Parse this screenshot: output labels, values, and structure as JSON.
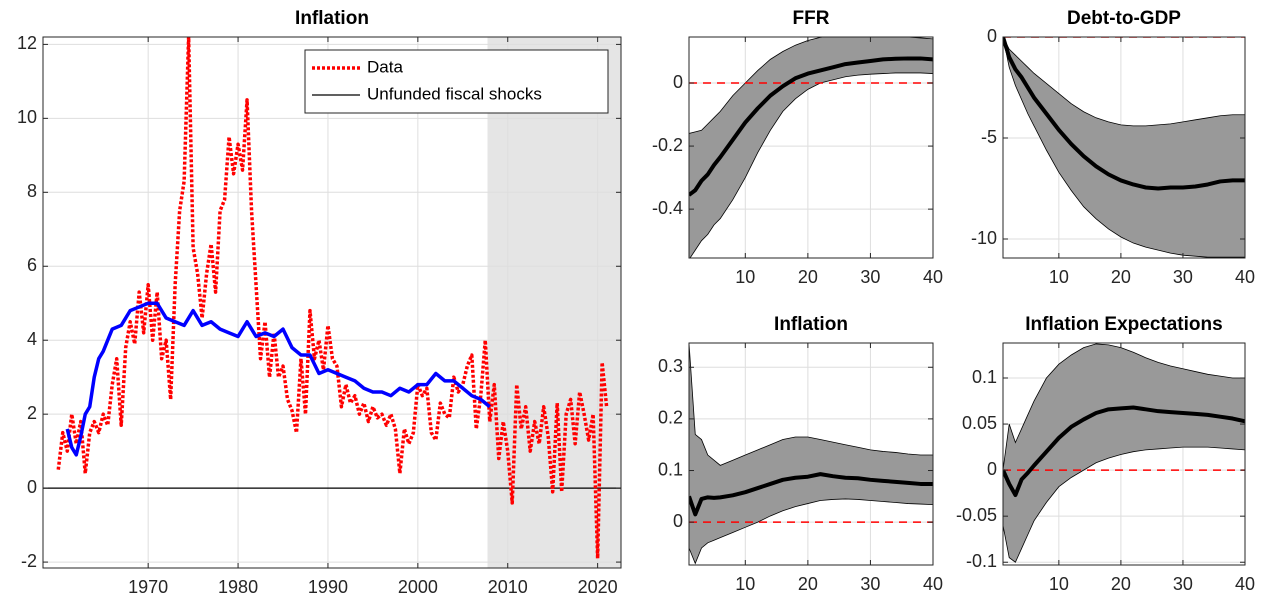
{
  "chart_data": [
    {
      "type": "line",
      "title": "Inflation",
      "xlim": [
        1958.3,
        2022.6
      ],
      "ylim": [
        -2.16,
        12.2
      ],
      "xticks": [
        1970,
        1980,
        1990,
        2000,
        2010,
        2020
      ],
      "yticks": [
        -2,
        0,
        2,
        4,
        6,
        8,
        10,
        12
      ],
      "grid": true,
      "legend": "upper right",
      "shade_x": [
        2007.75,
        2022.6
      ],
      "hline": 0,
      "hline_color": "#000000",
      "hline_style": "solid",
      "series": [
        {
          "name": "Data",
          "color": "#ff0000",
          "style": "dotted",
          "x": [
            1960,
            1960.5,
            1961,
            1961.5,
            1962,
            1962.5,
            1963,
            1963.5,
            1964,
            1964.5,
            1965,
            1965.5,
            1966,
            1966.5,
            1967,
            1967.5,
            1968,
            1968.5,
            1969,
            1969.5,
            1970,
            1970.5,
            1971,
            1971.5,
            1972,
            1972.5,
            1973,
            1973.5,
            1974,
            1974.5,
            1975,
            1975.5,
            1976,
            1976.5,
            1977,
            1977.5,
            1978,
            1978.5,
            1979,
            1979.5,
            1980,
            1980.5,
            1981,
            1981.5,
            1982,
            1982.5,
            1983,
            1983.5,
            1984,
            1984.5,
            1985,
            1985.5,
            1986,
            1986.5,
            1987,
            1987.5,
            1988,
            1988.5,
            1989,
            1989.5,
            1990,
            1990.5,
            1991,
            1991.5,
            1992,
            1992.5,
            1993,
            1993.5,
            1994,
            1994.5,
            1995,
            1995.5,
            1996,
            1996.5,
            1997,
            1997.5,
            1998,
            1998.5,
            1999,
            1999.5,
            2000,
            2000.5,
            2001,
            2001.5,
            2002,
            2002.5,
            2003,
            2003.5,
            2004,
            2004.5,
            2005,
            2005.5,
            2006,
            2006.5,
            2007,
            2007.5,
            2008,
            2008.5,
            2009,
            2009.5,
            2010,
            2010.5,
            2011,
            2011.5,
            2012,
            2012.5,
            2013,
            2013.5,
            2014,
            2014.5,
            2015,
            2015.5,
            2016,
            2016.5,
            2017,
            2017.5,
            2018,
            2018.5,
            2019,
            2019.5,
            2020,
            2020.5,
            2021
          ],
          "values": [
            0.5,
            1.5,
            1.0,
            2.0,
            1.2,
            1.8,
            0.4,
            1.5,
            1.8,
            1.5,
            2.0,
            1.7,
            2.8,
            3.5,
            1.7,
            3.8,
            4.5,
            3.9,
            5.3,
            4.2,
            5.5,
            4.0,
            5.3,
            3.5,
            4.0,
            2.4,
            5.5,
            7.5,
            8.3,
            12.2,
            6.5,
            5.8,
            4.6,
            5.8,
            6.6,
            5.3,
            7.5,
            7.8,
            9.5,
            8.5,
            9.3,
            8.6,
            10.5,
            7.5,
            5.5,
            3.5,
            4.5,
            3.0,
            4.2,
            3.0,
            3.3,
            2.4,
            2.1,
            1.5,
            3.5,
            2.0,
            4.8,
            3.5,
            4.0,
            3.2,
            4.4,
            3.5,
            3.3,
            2.2,
            2.8,
            2.3,
            2.5,
            2.0,
            2.3,
            1.8,
            2.2,
            1.9,
            2.0,
            1.7,
            2.0,
            1.6,
            0.4,
            1.6,
            1.2,
            1.5,
            2.8,
            2.5,
            2.7,
            1.5,
            1.3,
            2.3,
            2.0,
            1.9,
            3.0,
            2.6,
            2.8,
            3.3,
            3.6,
            1.6,
            2.5,
            4.0,
            1.8,
            2.8,
            0.8,
            1.8,
            1.0,
            -0.4,
            2.8,
            1.6,
            2.2,
            1.0,
            1.8,
            1.2,
            2.2,
            1.4,
            -0.1,
            2.3,
            -0.1,
            2.0,
            2.4,
            1.2,
            2.6,
            2.0,
            1.3,
            2.0,
            -1.9,
            3.4,
            2.2
          ]
        },
        {
          "name": "Unfunded fiscal shocks",
          "color": "#0000ff",
          "legend_color": "#000000",
          "x": [
            1961,
            1961.5,
            1962,
            1962.5,
            1963,
            1963.5,
            1964,
            1964.5,
            1965,
            1965.5,
            1966,
            1967,
            1968,
            1969,
            1970,
            1971,
            1972,
            1973,
            1974,
            1975,
            1976,
            1977,
            1978,
            1979,
            1980,
            1981,
            1982,
            1983,
            1984,
            1985,
            1986,
            1987,
            1988,
            1989,
            1990,
            1991,
            1992,
            1993,
            1994,
            1995,
            1996,
            1997,
            1998,
            1999,
            2000,
            2001,
            2002,
            2003,
            2004,
            2005,
            2006,
            2007,
            2008
          ],
          "values": [
            1.6,
            1.1,
            0.9,
            1.4,
            2.0,
            2.2,
            3.0,
            3.5,
            3.7,
            4.0,
            4.3,
            4.4,
            4.8,
            4.9,
            5.0,
            5.0,
            4.6,
            4.5,
            4.4,
            4.8,
            4.4,
            4.5,
            4.3,
            4.2,
            4.1,
            4.5,
            4.1,
            4.2,
            4.1,
            4.3,
            3.8,
            3.6,
            3.6,
            3.1,
            3.2,
            3.1,
            3.0,
            2.9,
            2.7,
            2.6,
            2.6,
            2.5,
            2.7,
            2.6,
            2.8,
            2.8,
            3.1,
            2.9,
            2.9,
            2.7,
            2.5,
            2.4,
            2.2
          ]
        }
      ]
    },
    {
      "type": "band",
      "title": "FFR",
      "xlim": [
        1,
        40
      ],
      "ylim": [
        -0.555,
        0.146
      ],
      "xticks": [
        10,
        20,
        30,
        40
      ],
      "yticks": [
        -0.4,
        -0.2,
        0
      ],
      "grid": true,
      "hline": 0,
      "hline_color": "#ff0000",
      "hline_style": "dashed",
      "x": [
        1,
        2,
        3,
        4,
        5,
        6,
        8,
        10,
        12,
        14,
        16,
        18,
        20,
        22,
        24,
        26,
        28,
        30,
        32,
        34,
        36,
        38,
        40
      ],
      "band": {
        "color": "#999999",
        "lower": [
          -0.56,
          -0.53,
          -0.5,
          -0.48,
          -0.45,
          -0.43,
          -0.37,
          -0.3,
          -0.22,
          -0.15,
          -0.09,
          -0.05,
          -0.02,
          0.0,
          0.01,
          0.02,
          0.025,
          0.028,
          0.03,
          0.032,
          0.032,
          0.032,
          0.03
        ],
        "upper": [
          -0.16,
          -0.155,
          -0.15,
          -0.13,
          -0.11,
          -0.09,
          -0.04,
          0.0,
          0.04,
          0.075,
          0.1,
          0.12,
          0.135,
          0.145,
          0.15,
          0.152,
          0.152,
          0.152,
          0.15,
          0.148,
          0.146,
          0.143,
          0.14
        ]
      },
      "series": [
        {
          "color": "#000000",
          "values": [
            -0.355,
            -0.34,
            -0.31,
            -0.29,
            -0.26,
            -0.235,
            -0.18,
            -0.125,
            -0.08,
            -0.04,
            -0.01,
            0.015,
            0.03,
            0.04,
            0.05,
            0.06,
            0.065,
            0.07,
            0.075,
            0.077,
            0.078,
            0.078,
            0.075
          ]
        }
      ]
    },
    {
      "type": "band",
      "title": "Debt-to-GDP",
      "xlim": [
        1,
        40
      ],
      "ylim": [
        -10.94,
        0
      ],
      "xticks": [
        10,
        20,
        30,
        40
      ],
      "yticks": [
        -10,
        -5,
        0
      ],
      "grid": true,
      "hline": 0,
      "hline_color": "#ff0000",
      "hline_style": "dashed",
      "x": [
        1,
        2,
        3,
        4,
        5,
        6,
        8,
        10,
        12,
        14,
        16,
        18,
        20,
        22,
        24,
        26,
        28,
        30,
        32,
        34,
        36,
        38,
        40
      ],
      "band": {
        "color": "#999999",
        "lower": [
          0,
          -1.5,
          -2.4,
          -3.1,
          -3.8,
          -4.4,
          -5.6,
          -6.7,
          -7.6,
          -8.4,
          -9.0,
          -9.5,
          -9.9,
          -10.2,
          -10.4,
          -10.55,
          -10.7,
          -10.8,
          -10.85,
          -10.9,
          -10.9,
          -10.9,
          -10.9
        ],
        "upper": [
          0,
          -0.6,
          -0.9,
          -1.2,
          -1.5,
          -1.8,
          -2.3,
          -2.8,
          -3.3,
          -3.7,
          -4.0,
          -4.2,
          -4.35,
          -4.4,
          -4.4,
          -4.35,
          -4.3,
          -4.2,
          -4.1,
          -4.0,
          -3.9,
          -3.85,
          -3.85
        ]
      },
      "series": [
        {
          "color": "#000000",
          "values": [
            0,
            -1.0,
            -1.6,
            -2.0,
            -2.5,
            -3.0,
            -3.8,
            -4.6,
            -5.3,
            -5.9,
            -6.4,
            -6.8,
            -7.1,
            -7.3,
            -7.45,
            -7.5,
            -7.45,
            -7.45,
            -7.4,
            -7.3,
            -7.15,
            -7.1,
            -7.1
          ]
        }
      ]
    },
    {
      "type": "band",
      "title": "Inflation",
      "xlim": [
        1,
        40
      ],
      "ylim": [
        -0.083,
        0.347
      ],
      "xticks": [
        10,
        20,
        30,
        40
      ],
      "yticks": [
        0,
        0.1,
        0.2,
        0.3
      ],
      "grid": true,
      "hline": 0,
      "hline_color": "#ff0000",
      "hline_style": "dashed",
      "x": [
        1,
        2,
        3,
        4,
        5,
        6,
        8,
        10,
        12,
        14,
        16,
        18,
        20,
        22,
        24,
        26,
        28,
        30,
        32,
        34,
        36,
        38,
        40
      ],
      "band": {
        "color": "#999999",
        "lower": [
          -0.05,
          -0.08,
          -0.05,
          -0.04,
          -0.035,
          -0.03,
          -0.02,
          -0.01,
          0.0,
          0.012,
          0.022,
          0.03,
          0.036,
          0.042,
          0.044,
          0.045,
          0.044,
          0.042,
          0.04,
          0.038,
          0.036,
          0.035,
          0.034
        ],
        "upper": [
          0.347,
          0.17,
          0.16,
          0.13,
          0.12,
          0.11,
          0.12,
          0.13,
          0.14,
          0.15,
          0.16,
          0.165,
          0.165,
          0.16,
          0.155,
          0.15,
          0.145,
          0.14,
          0.137,
          0.135,
          0.132,
          0.13,
          0.13
        ]
      },
      "series": [
        {
          "color": "#000000",
          "values": [
            0.05,
            0.015,
            0.045,
            0.048,
            0.047,
            0.048,
            0.052,
            0.058,
            0.066,
            0.074,
            0.082,
            0.086,
            0.088,
            0.093,
            0.089,
            0.086,
            0.085,
            0.082,
            0.08,
            0.078,
            0.076,
            0.074,
            0.074
          ]
        }
      ]
    },
    {
      "type": "band",
      "title": "Inflation Expectations",
      "xlim": [
        1,
        40
      ],
      "ylim": [
        -0.103,
        0.138
      ],
      "xticks": [
        10,
        20,
        30,
        40
      ],
      "yticks": [
        -0.1,
        -0.05,
        0,
        0.05,
        0.1
      ],
      "grid": true,
      "hline": 0,
      "hline_color": "#ff0000",
      "hline_style": "dashed",
      "x": [
        1,
        2,
        3,
        4,
        5,
        6,
        8,
        10,
        12,
        14,
        16,
        18,
        20,
        22,
        24,
        26,
        28,
        30,
        32,
        34,
        36,
        38,
        40
      ],
      "band": {
        "color": "#999999",
        "lower": [
          -0.06,
          -0.095,
          -0.1,
          -0.085,
          -0.07,
          -0.055,
          -0.035,
          -0.018,
          -0.008,
          0.0,
          0.008,
          0.013,
          0.017,
          0.02,
          0.022,
          0.023,
          0.024,
          0.025,
          0.025,
          0.025,
          0.024,
          0.023,
          0.022
        ],
        "upper": [
          0,
          0.05,
          0.03,
          0.045,
          0.06,
          0.075,
          0.1,
          0.115,
          0.125,
          0.133,
          0.137,
          0.136,
          0.133,
          0.128,
          0.122,
          0.117,
          0.113,
          0.11,
          0.107,
          0.104,
          0.102,
          0.1,
          0.1
        ]
      },
      "series": [
        {
          "color": "#000000",
          "values": [
            0,
            -0.015,
            -0.027,
            -0.01,
            -0.003,
            0.005,
            0.02,
            0.035,
            0.047,
            0.055,
            0.062,
            0.066,
            0.067,
            0.068,
            0.066,
            0.064,
            0.063,
            0.062,
            0.061,
            0.06,
            0.058,
            0.056,
            0.053
          ]
        }
      ]
    }
  ]
}
